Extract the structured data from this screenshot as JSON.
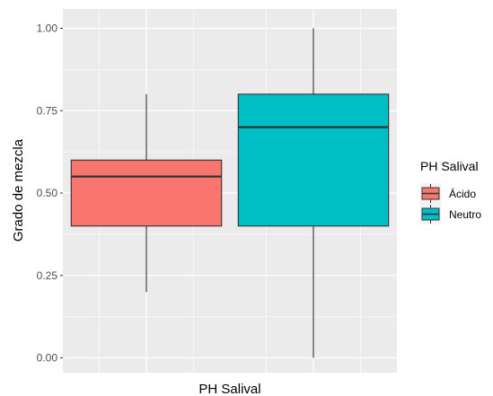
{
  "chart_data": {
    "type": "boxplot",
    "xlabel": "PH Salival",
    "ylabel": "Grado de mezcla",
    "ylim": [
      -0.05,
      1.05
    ],
    "yticks": [
      "0.00",
      "0.25",
      "0.50",
      "0.75",
      "1.00"
    ],
    "ytick_values": [
      0,
      0.25,
      0.5,
      0.75,
      1.0
    ],
    "grid": true,
    "legend": {
      "title": "PH Salival",
      "position": "right",
      "entries": [
        "Ácido",
        "Neutro"
      ]
    },
    "series": [
      {
        "name": "Ácido",
        "color": "#F8766D",
        "min": 0.2,
        "q1": 0.4,
        "median": 0.55,
        "q3": 0.6,
        "max": 0.8
      },
      {
        "name": "Neutro",
        "color": "#00BFC4",
        "min": 0.0,
        "q1": 0.4,
        "median": 0.7,
        "q3": 0.8,
        "max": 1.0
      }
    ]
  },
  "colors": {
    "panel_background": "#EBEBEB",
    "grid_major": "#FFFFFF",
    "box_outline": "#333333"
  }
}
